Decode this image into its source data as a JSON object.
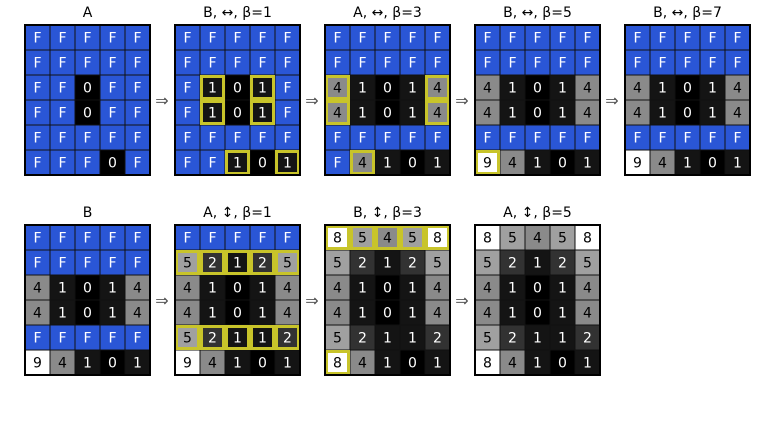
{
  "colors": {
    "blue": "#2a56d6",
    "border": "#000000",
    "highlight": "#c8c42a",
    "grid_line": "#111111",
    "text_light": "#ffffff",
    "text_dark": "#000000"
  },
  "panels": [
    {
      "title": "A",
      "cells": [
        [
          "F",
          "F",
          "F",
          "F",
          "F"
        ],
        [
          "F",
          "F",
          "F",
          "F",
          "F"
        ],
        [
          "F",
          "F",
          "0",
          "F",
          "F"
        ],
        [
          "F",
          "F",
          "0",
          "F",
          "F"
        ],
        [
          "F",
          "F",
          "F",
          "F",
          "F"
        ],
        [
          "F",
          "F",
          "F",
          "0",
          "F"
        ]
      ],
      "highlights": []
    },
    {
      "title": "B, ↔, β=1",
      "cells": [
        [
          "F",
          "F",
          "F",
          "F",
          "F"
        ],
        [
          "F",
          "F",
          "F",
          "F",
          "F"
        ],
        [
          "F",
          "1",
          "0",
          "1",
          "F"
        ],
        [
          "F",
          "1",
          "0",
          "1",
          "F"
        ],
        [
          "F",
          "F",
          "F",
          "F",
          "F"
        ],
        [
          "F",
          "F",
          "1",
          "0",
          "1"
        ]
      ],
      "highlights": [
        [
          2,
          1
        ],
        [
          2,
          3
        ],
        [
          3,
          1
        ],
        [
          3,
          3
        ],
        [
          5,
          2
        ],
        [
          5,
          4
        ]
      ]
    },
    {
      "title": "A, ↔, β=3",
      "cells": [
        [
          "F",
          "F",
          "F",
          "F",
          "F"
        ],
        [
          "F",
          "F",
          "F",
          "F",
          "F"
        ],
        [
          "4",
          "1",
          "0",
          "1",
          "4"
        ],
        [
          "4",
          "1",
          "0",
          "1",
          "4"
        ],
        [
          "F",
          "F",
          "F",
          "F",
          "F"
        ],
        [
          "F",
          "4",
          "1",
          "0",
          "1"
        ]
      ],
      "highlights": [
        [
          2,
          0
        ],
        [
          2,
          4
        ],
        [
          3,
          0
        ],
        [
          3,
          4
        ],
        [
          5,
          1
        ]
      ]
    },
    {
      "title": "B, ↔, β=5",
      "cells": [
        [
          "F",
          "F",
          "F",
          "F",
          "F"
        ],
        [
          "F",
          "F",
          "F",
          "F",
          "F"
        ],
        [
          "4",
          "1",
          "0",
          "1",
          "4"
        ],
        [
          "4",
          "1",
          "0",
          "1",
          "4"
        ],
        [
          "F",
          "F",
          "F",
          "F",
          "F"
        ],
        [
          "9",
          "4",
          "1",
          "0",
          "1"
        ]
      ],
      "highlights": [
        [
          5,
          0
        ]
      ]
    },
    {
      "title": "B, ↔, β=7",
      "cells": [
        [
          "F",
          "F",
          "F",
          "F",
          "F"
        ],
        [
          "F",
          "F",
          "F",
          "F",
          "F"
        ],
        [
          "4",
          "1",
          "0",
          "1",
          "4"
        ],
        [
          "4",
          "1",
          "0",
          "1",
          "4"
        ],
        [
          "F",
          "F",
          "F",
          "F",
          "F"
        ],
        [
          "9",
          "4",
          "1",
          "0",
          "1"
        ]
      ],
      "highlights": []
    },
    {
      "title": "B",
      "cells": [
        [
          "F",
          "F",
          "F",
          "F",
          "F"
        ],
        [
          "F",
          "F",
          "F",
          "F",
          "F"
        ],
        [
          "4",
          "1",
          "0",
          "1",
          "4"
        ],
        [
          "4",
          "1",
          "0",
          "1",
          "4"
        ],
        [
          "F",
          "F",
          "F",
          "F",
          "F"
        ],
        [
          "9",
          "4",
          "1",
          "0",
          "1"
        ]
      ],
      "highlights": []
    },
    {
      "title": "A, ↕, β=1",
      "cells": [
        [
          "F",
          "F",
          "F",
          "F",
          "F"
        ],
        [
          "5",
          "2",
          "1",
          "2",
          "5"
        ],
        [
          "4",
          "1",
          "0",
          "1",
          "4"
        ],
        [
          "4",
          "1",
          "0",
          "1",
          "4"
        ],
        [
          "5",
          "2",
          "1",
          "1",
          "2"
        ],
        [
          "9",
          "4",
          "1",
          "0",
          "1"
        ]
      ],
      "highlights": [
        [
          1,
          0
        ],
        [
          1,
          1
        ],
        [
          1,
          2
        ],
        [
          1,
          3
        ],
        [
          1,
          4
        ],
        [
          4,
          0
        ],
        [
          4,
          1
        ],
        [
          4,
          2
        ],
        [
          4,
          3
        ],
        [
          4,
          4
        ]
      ]
    },
    {
      "title": "B, ↕, β=3",
      "cells": [
        [
          "8",
          "5",
          "4",
          "5",
          "8"
        ],
        [
          "5",
          "2",
          "1",
          "2",
          "5"
        ],
        [
          "4",
          "1",
          "0",
          "1",
          "4"
        ],
        [
          "4",
          "1",
          "0",
          "1",
          "4"
        ],
        [
          "5",
          "2",
          "1",
          "1",
          "2"
        ],
        [
          "8",
          "4",
          "1",
          "0",
          "1"
        ]
      ],
      "highlights": [
        [
          0,
          0
        ],
        [
          0,
          1
        ],
        [
          0,
          2
        ],
        [
          0,
          3
        ],
        [
          0,
          4
        ],
        [
          5,
          0
        ]
      ]
    },
    {
      "title": "A, ↕, β=5",
      "cells": [
        [
          "8",
          "5",
          "4",
          "5",
          "8"
        ],
        [
          "5",
          "2",
          "1",
          "2",
          "5"
        ],
        [
          "4",
          "1",
          "0",
          "1",
          "4"
        ],
        [
          "4",
          "1",
          "0",
          "1",
          "4"
        ],
        [
          "5",
          "2",
          "1",
          "1",
          "2"
        ],
        [
          "8",
          "4",
          "1",
          "0",
          "1"
        ]
      ],
      "highlights": []
    }
  ],
  "arrows": [
    "⇒",
    "⇒",
    "⇒",
    "⇒",
    "⇒",
    "⇒",
    "⇒"
  ]
}
